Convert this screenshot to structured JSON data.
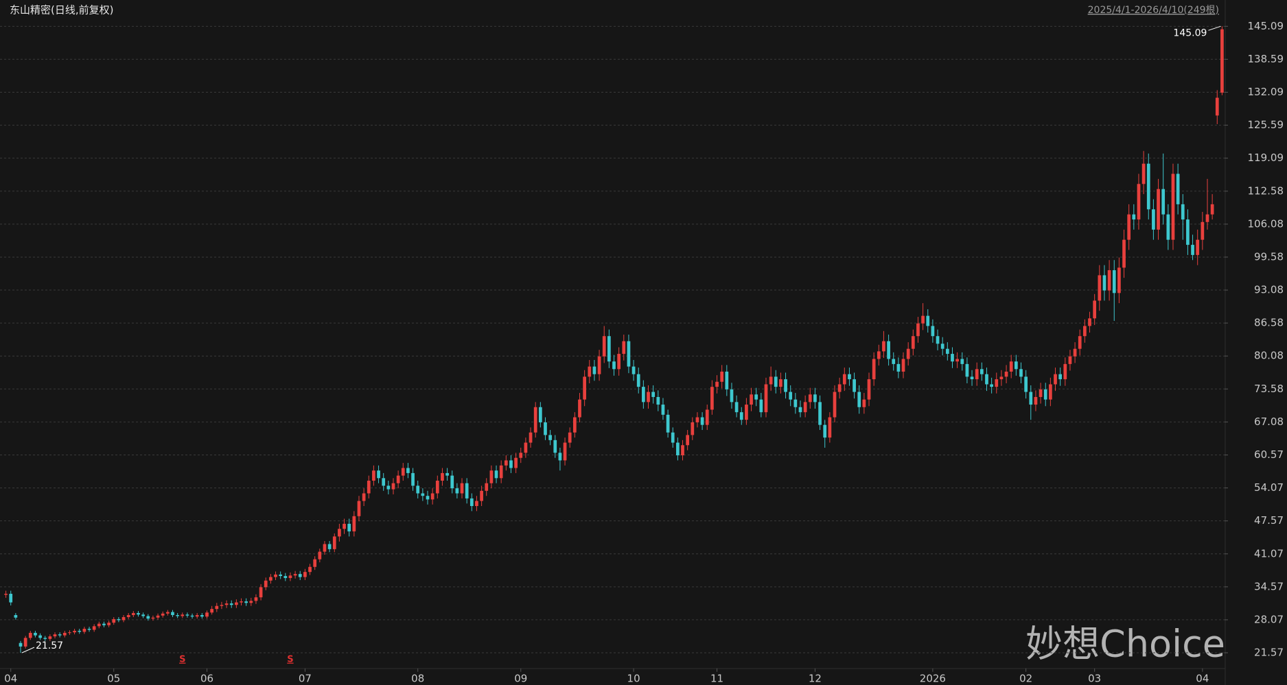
{
  "chart_data": {
    "type": "candlestick",
    "title": "东山精密(日线,前复权)",
    "subtitle": "2025/4/1-2026/4/10(249根)",
    "watermark": "妙想Choice",
    "up_color": "#e8403d",
    "down_color": "#3ec8cf",
    "grid": true,
    "open": [
      33.0,
      33.2,
      29.0,
      23.5,
      22.8,
      24.5,
      25.5,
      25,
      24.5,
      24.3,
      24.8,
      25.2,
      25.0,
      25.5,
      25.6,
      25.9,
      25.7,
      26.3,
      26.1,
      26.8,
      27.3,
      27.0,
      27.5,
      28.2,
      28.0,
      28.6,
      29.0,
      29.4,
      29.1,
      28.8,
      28.3,
      28.5,
      28.9,
      29.3,
      29.6,
      29.0,
      28.8,
      29.1,
      28.9,
      28.7,
      29.0,
      28.7,
      29.5,
      30.2,
      30.8,
      31.0,
      31.3,
      31.0,
      31.5,
      31.7,
      31.4,
      31.8,
      32.5,
      34.5,
      35.8,
      36.5,
      37.0,
      36.7,
      36.3,
      36.8,
      37.1,
      36.5,
      37.5,
      38.5,
      40.0,
      41.5,
      43.0,
      42.0,
      44.5,
      46.0,
      47.0,
      45.5,
      48.5,
      51.5,
      53.0,
      55.5,
      57.5,
      56.0,
      54.5,
      53.8,
      55.0,
      56.5,
      58.0,
      57.0,
      54.5,
      53.0,
      52.5,
      51.8,
      53.0,
      55.5,
      57.0,
      56.5,
      54.0,
      53.0,
      55.0,
      52.0,
      50.5,
      51.5,
      53.5,
      55.0,
      57.5,
      56.0,
      58.5,
      59.5,
      58.0,
      60.0,
      61,
      63,
      65,
      70,
      67,
      64.5,
      63.5,
      61,
      59.5,
      63,
      65,
      68,
      71.5,
      76,
      78,
      76.5,
      80,
      84,
      79,
      77.5,
      80.5,
      83,
      78,
      76.5,
      74,
      71,
      73,
      72,
      70.5,
      68.5,
      65,
      63,
      60.5,
      62.5,
      64.5,
      67,
      68,
      66.5,
      69.5,
      74,
      75,
      77,
      73.5,
      71,
      69,
      67.5,
      70.5,
      72.5,
      71.5,
      69,
      74.5,
      76,
      74,
      75.5,
      73,
      71.5,
      70,
      69,
      71,
      72.5,
      71,
      66.5,
      64,
      68,
      73,
      74.5,
      76.5,
      75.5,
      73,
      70,
      71.5,
      75.5,
      79.5,
      81,
      83,
      79.5,
      78.5,
      77,
      79.5,
      81.5,
      84,
      86.5,
      88,
      86,
      84,
      82.5,
      81.5,
      80.5,
      79,
      79.5,
      78.5,
      76,
      75.5,
      77.5,
      76.5,
      74.5,
      74,
      75.5,
      76,
      77,
      79,
      77.5,
      76,
      73,
      70.5,
      72,
      73.5,
      71.5,
      74.5,
      76.5,
      75.5,
      78.5,
      80,
      81.5,
      84,
      86,
      87.5,
      91,
      96,
      93,
      97,
      92.5,
      97.5,
      103,
      108,
      107,
      114,
      118,
      109,
      105,
      113,
      108,
      103,
      116,
      110,
      107,
      102,
      100,
      103,
      106.5,
      108,
      127.5,
      132
    ],
    "high": [
      33.8,
      33.8,
      29.4,
      23.9,
      24.9,
      25.9,
      25.9,
      25.4,
      24.9,
      25.2,
      25.6,
      25.6,
      25.9,
      26.0,
      26.3,
      26.3,
      26.7,
      26.7,
      27.2,
      27.7,
      27.7,
      27.9,
      28.6,
      28.6,
      29.0,
      29.4,
      29.8,
      29.8,
      29.5,
      29.2,
      28.9,
      29.3,
      29.7,
      30.0,
      30.0,
      29.4,
      29.5,
      29.5,
      29.3,
      29.4,
      29.4,
      29.9,
      30.8,
      31.4,
      31.6,
      31.9,
      31.9,
      32.1,
      32.3,
      32.3,
      32.4,
      33.1,
      35.1,
      36.4,
      37.1,
      37.6,
      37.6,
      37.3,
      37.4,
      37.7,
      37.7,
      38.1,
      39.1,
      40.6,
      42.1,
      43.6,
      43.6,
      45.1,
      47.0,
      48.0,
      48.0,
      49.5,
      52.5,
      54.0,
      56.5,
      58.5,
      58.5,
      57.0,
      55.5,
      56.0,
      57.5,
      59.0,
      59.0,
      58.0,
      55.5,
      54.0,
      53.5,
      54.0,
      56.5,
      58.0,
      58.0,
      57.5,
      55.0,
      56.0,
      56.0,
      53.0,
      52.5,
      54.5,
      56.0,
      58.5,
      58.5,
      59.5,
      60.5,
      60.5,
      61.0,
      62.0,
      64.0,
      66.0,
      71.0,
      71.0,
      68.0,
      65.5,
      64.5,
      62.0,
      64.0,
      66.0,
      69.0,
      72.8,
      77.3,
      79.3,
      79.3,
      81.3,
      86.0,
      85.3,
      80.3,
      81.8,
      84.3,
      84.3,
      79.3,
      77.8,
      75.3,
      74.3,
      74.3,
      73.3,
      71.8,
      69.5,
      66.0,
      64.0,
      63.5,
      65.5,
      68.0,
      69.0,
      69.0,
      70.5,
      75.3,
      76.3,
      78.3,
      78.3,
      74.8,
      72.3,
      70.0,
      71.8,
      73.8,
      73.8,
      72.8,
      75.8,
      78.0,
      77.3,
      76.8,
      76.8,
      74.3,
      72.8,
      71.3,
      72.3,
      73.8,
      73.8,
      72.3,
      67.5,
      69.0,
      74.3,
      75.8,
      77.8,
      77.8,
      76.8,
      74.3,
      72.8,
      76.8,
      80.8,
      82.3,
      85.0,
      84.3,
      80.8,
      79.8,
      80.8,
      82.8,
      85.3,
      87.8,
      90.5,
      89.3,
      87.3,
      85.3,
      83.8,
      82.8,
      81.8,
      80.8,
      80.8,
      79.8,
      77.3,
      78.8,
      78.8,
      77.8,
      75.8,
      76.8,
      77.3,
      78.3,
      80.3,
      80.3,
      78.8,
      77.3,
      74.3,
      73.3,
      74.8,
      74.8,
      75.8,
      77.8,
      77.8,
      79.8,
      81.3,
      82.8,
      85.3,
      87.3,
      88.8,
      92.3,
      98.0,
      98.0,
      99.0,
      99.0,
      99.5,
      105.0,
      110.0,
      110.0,
      116.0,
      120.5,
      120.0,
      111.0,
      115.0,
      120.0,
      110.0,
      118.0,
      118.0,
      112.0,
      109.0,
      104.0,
      105.0,
      108.5,
      115.0,
      112.0,
      132.5,
      145.09
    ],
    "low": [
      32.4,
      30.9,
      28.1,
      21.57,
      22.4,
      24.1,
      24.6,
      24.1,
      23.9,
      23.9,
      24.4,
      24.6,
      24.6,
      25.1,
      25.2,
      25.3,
      25.3,
      25.7,
      25.7,
      26.4,
      26.6,
      26.6,
      27.1,
      27.6,
      27.6,
      28.2,
      28.6,
      28.7,
      28.4,
      27.9,
      27.9,
      28.1,
      28.5,
      28.9,
      28.6,
      28.4,
      28.4,
      28.5,
      28.3,
      28.3,
      28.3,
      28.3,
      29.1,
      29.6,
      30.2,
      30.4,
      30.4,
      30.4,
      30.9,
      30.8,
      30.8,
      31.2,
      31.9,
      33.9,
      35.2,
      35.9,
      36.1,
      35.7,
      35.7,
      36.2,
      35.9,
      35.9,
      36.9,
      37.9,
      39.4,
      40.9,
      41.4,
      41.4,
      43.5,
      45.0,
      44.5,
      44.5,
      47.5,
      50.5,
      52.0,
      54.5,
      55.0,
      53.5,
      52.8,
      52.8,
      54.0,
      55.5,
      56.0,
      53.5,
      52.0,
      51.5,
      50.8,
      50.8,
      52.0,
      54.5,
      55.5,
      53.0,
      52.0,
      52.0,
      51.0,
      49.5,
      49.5,
      50.5,
      52.5,
      54.0,
      55.0,
      55.0,
      57.5,
      57.0,
      57.0,
      59.0,
      60.0,
      62.0,
      64.0,
      66.0,
      63.5,
      62.5,
      60.0,
      57.5,
      58.5,
      62.0,
      64.0,
      67.0,
      70.2,
      74.7,
      75.2,
      75.2,
      78.7,
      77.7,
      76.2,
      76.2,
      79.2,
      76.7,
      75.2,
      72.7,
      69.7,
      69.7,
      70.7,
      69.2,
      67.5,
      64.0,
      62.0,
      59.5,
      59.5,
      61.5,
      63.5,
      66.0,
      65.5,
      65.5,
      68.5,
      72.7,
      73.7,
      72.2,
      69.7,
      68.0,
      66.5,
      66.5,
      69.2,
      70.2,
      68.0,
      68.0,
      73.2,
      72.7,
      72.7,
      71.7,
      70.2,
      68.7,
      68.0,
      68.0,
      69.7,
      69.7,
      65.5,
      62.0,
      63.0,
      67.0,
      71.7,
      73.2,
      74.2,
      71.7,
      68.7,
      68.7,
      70.2,
      74.2,
      78.2,
      79.7,
      78.2,
      77.2,
      75.7,
      75.7,
      78.2,
      80.2,
      82.7,
      85.2,
      84.7,
      82.7,
      81.2,
      80.2,
      79.2,
      77.7,
      77.7,
      77.2,
      74.7,
      74.2,
      74.2,
      75.2,
      73.2,
      72.7,
      72.7,
      74.2,
      74.7,
      75.7,
      76.2,
      74.7,
      71.7,
      67.5,
      69.2,
      70.7,
      70.2,
      70.2,
      73.2,
      74.2,
      74.2,
      77.2,
      78.7,
      80.2,
      82.7,
      84.7,
      86.2,
      89.0,
      91.0,
      91.0,
      87.0,
      90.5,
      95.5,
      101.0,
      105.0,
      105.0,
      112.0,
      107.0,
      103.0,
      103.0,
      106.0,
      101.0,
      101.0,
      108.0,
      103.0,
      100.0,
      99.0,
      98.0,
      101.0,
      105.0,
      107.0,
      125.8,
      131.5
    ],
    "close": [
      33.2,
      31.5,
      28.5,
      22.8,
      24.5,
      25.5,
      25,
      24.5,
      24.3,
      24.8,
      25.2,
      25.0,
      25.5,
      25.6,
      25.9,
      25.7,
      26.3,
      26.1,
      26.8,
      27.3,
      27.0,
      27.5,
      28.2,
      28.0,
      28.6,
      29.0,
      29.4,
      29.1,
      28.8,
      28.3,
      28.5,
      28.9,
      29.3,
      29.6,
      29.0,
      28.8,
      29.1,
      28.9,
      28.7,
      29.0,
      28.7,
      29.5,
      30.2,
      30.8,
      31.0,
      31.3,
      31.0,
      31.5,
      31.7,
      31.4,
      31.8,
      32.5,
      34.5,
      35.8,
      36.5,
      37.0,
      36.7,
      36.3,
      36.8,
      37.1,
      36.5,
      37.5,
      38.5,
      40.0,
      41.5,
      43.0,
      42.0,
      44.5,
      46.0,
      47.0,
      45.5,
      48.5,
      51.5,
      53.0,
      55.5,
      57.5,
      56.0,
      54.5,
      53.8,
      55.0,
      56.5,
      58.0,
      57.0,
      54.5,
      53.0,
      52.5,
      51.8,
      53.0,
      55.5,
      57.0,
      56.5,
      54.0,
      53.0,
      55.0,
      52.0,
      50.5,
      51.5,
      53.5,
      55.0,
      57.5,
      56.0,
      58.5,
      59.5,
      58.0,
      60.0,
      61.0,
      63,
      65,
      70,
      67,
      64.5,
      63.5,
      61,
      59.5,
      63,
      65,
      68,
      71.5,
      76,
      78,
      76.5,
      80,
      84,
      79,
      77.5,
      80.5,
      83,
      78,
      76.5,
      74,
      71,
      73,
      72,
      70.5,
      68.5,
      65,
      63,
      60.5,
      62.5,
      64.5,
      67,
      68,
      66.5,
      69.5,
      74,
      75,
      77,
      73.5,
      71,
      69,
      67.5,
      70.5,
      72.5,
      71.5,
      69,
      74.5,
      76,
      74,
      75.5,
      73,
      71.5,
      70,
      69,
      71,
      72.5,
      71,
      66.5,
      64,
      68,
      73,
      74.5,
      76.5,
      75.5,
      73,
      70,
      71.5,
      75.5,
      79.5,
      81,
      83,
      79.5,
      78.5,
      77,
      79.5,
      81.5,
      84,
      86.5,
      88,
      86,
      84,
      82.5,
      81.5,
      80.5,
      79,
      79.5,
      78.5,
      76,
      75.5,
      77.5,
      76.5,
      74.5,
      74,
      75.5,
      76,
      77,
      79,
      77.5,
      76,
      73,
      70.5,
      72,
      73.5,
      71.5,
      74.5,
      76.5,
      75.5,
      78.5,
      80,
      81.5,
      84,
      86,
      87.5,
      91,
      96,
      93,
      97,
      92.5,
      97.5,
      103,
      108,
      107,
      114,
      118,
      109,
      105,
      113,
      108,
      103,
      116,
      110,
      107,
      102,
      100,
      103,
      106.5,
      108,
      110,
      131,
      144.5
    ],
    "xlim": [
      -0.5,
      248.5
    ],
    "xticks": [
      {
        "value": 1,
        "label": "04"
      },
      {
        "value": 22,
        "label": "05"
      },
      {
        "value": 41,
        "label": "06"
      },
      {
        "value": 61,
        "label": "07"
      },
      {
        "value": 84,
        "label": "08"
      },
      {
        "value": 105,
        "label": "09"
      },
      {
        "value": 128,
        "label": "10"
      },
      {
        "value": 145,
        "label": "11"
      },
      {
        "value": 165,
        "label": "12"
      },
      {
        "value": 189,
        "label": "2026"
      },
      {
        "value": 208,
        "label": "02"
      },
      {
        "value": 222,
        "label": "03"
      },
      {
        "value": 244,
        "label": "04"
      }
    ],
    "ylim": [
      18.5,
      147.0
    ],
    "yticks": [
      21.57,
      28.07,
      34.57,
      41.07,
      47.57,
      54.07,
      60.57,
      67.08,
      73.58,
      80.08,
      86.58,
      93.08,
      99.58,
      106.08,
      112.58,
      119.09,
      125.59,
      132.09,
      138.59,
      145.09
    ],
    "markers": [
      {
        "index": 36,
        "label": "S"
      },
      {
        "index": 58,
        "label": "S"
      }
    ]
  }
}
